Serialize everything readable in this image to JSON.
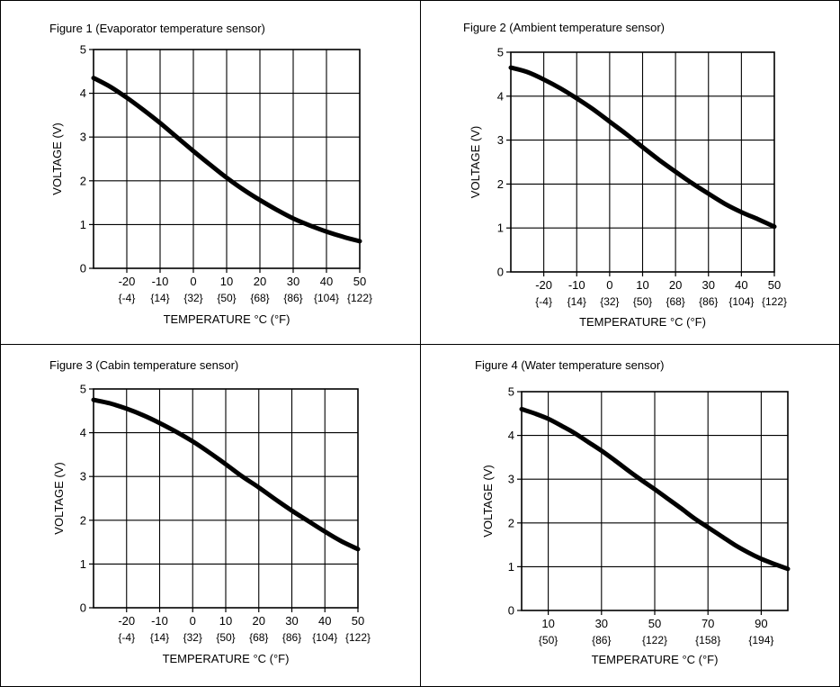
{
  "chart_data": [
    {
      "type": "line",
      "title": "Figure 1 (Evaporator temperature sensor)",
      "xlabel": "TEMPERATURE  °C (°F)",
      "ylabel": "VOLTAGE (V)",
      "xlim": [
        -30,
        50
      ],
      "ylim": [
        0,
        5
      ],
      "x_ticks": [
        "-20",
        "-10",
        "0",
        "10",
        "20",
        "30",
        "40",
        "50"
      ],
      "x_ticks_f": [
        "{-4}",
        "{14}",
        "{32}",
        "{50}",
        "{68}",
        "{86}",
        "{104}",
        "{122}"
      ],
      "y_ticks": [
        "0",
        "1",
        "2",
        "3",
        "4",
        "5"
      ],
      "grid": true,
      "series": [
        {
          "x": [
            -30,
            -25,
            -20,
            -15,
            -10,
            -5,
            0,
            5,
            10,
            15,
            20,
            25,
            30,
            35,
            40,
            45,
            50
          ],
          "y": [
            4.35,
            4.15,
            3.9,
            3.62,
            3.32,
            3.0,
            2.68,
            2.37,
            2.07,
            1.8,
            1.56,
            1.34,
            1.14,
            0.98,
            0.84,
            0.72,
            0.62
          ]
        }
      ]
    },
    {
      "type": "line",
      "title": "Figure 2 (Ambient temperature sensor)",
      "xlabel": "TEMPERATURE  °C (°F)",
      "ylabel": "VOLTAGE (V)",
      "xlim": [
        -30,
        50
      ],
      "ylim": [
        0,
        5
      ],
      "x_ticks": [
        "-20",
        "-10",
        "0",
        "10",
        "20",
        "30",
        "40",
        "50"
      ],
      "x_ticks_f": [
        "{-4}",
        "{14}",
        "{32}",
        "{50}",
        "{68}",
        "{86}",
        "{104}",
        "{122}"
      ],
      "y_ticks": [
        "0",
        "1",
        "2",
        "3",
        "4",
        "5"
      ],
      "grid": true,
      "series": [
        {
          "x": [
            -30,
            -25,
            -20,
            -15,
            -10,
            -5,
            0,
            5,
            10,
            15,
            20,
            25,
            30,
            35,
            40,
            45,
            50
          ],
          "y": [
            4.65,
            4.55,
            4.38,
            4.18,
            3.95,
            3.7,
            3.42,
            3.14,
            2.84,
            2.55,
            2.28,
            2.02,
            1.78,
            1.55,
            1.36,
            1.2,
            1.03
          ]
        }
      ]
    },
    {
      "type": "line",
      "title": "Figure 3 (Cabin temperature sensor)",
      "xlabel": "TEMPERATURE  °C (°F)",
      "ylabel": "VOLTAGE (V)",
      "xlim": [
        -30,
        50
      ],
      "ylim": [
        0,
        5
      ],
      "x_ticks": [
        "-20",
        "-10",
        "0",
        "10",
        "20",
        "30",
        "40",
        "50"
      ],
      "x_ticks_f": [
        "{-4}",
        "{14}",
        "{32}",
        "{50}",
        "{68}",
        "{86}",
        "{104}",
        "{122}"
      ],
      "y_ticks": [
        "0",
        "1",
        "2",
        "3",
        "4",
        "5"
      ],
      "grid": true,
      "series": [
        {
          "x": [
            -30,
            -25,
            -20,
            -15,
            -10,
            -5,
            0,
            5,
            10,
            15,
            20,
            25,
            30,
            35,
            40,
            45,
            50
          ],
          "y": [
            4.75,
            4.67,
            4.55,
            4.4,
            4.22,
            4.02,
            3.8,
            3.55,
            3.28,
            3.0,
            2.75,
            2.48,
            2.22,
            1.98,
            1.74,
            1.52,
            1.34
          ]
        }
      ]
    },
    {
      "type": "line",
      "title": "Figure 4 (Water temperature sensor)",
      "xlabel": "TEMPERATURE  °C (°F)",
      "ylabel": "VOLTAGE (V)",
      "xlim": [
        0,
        100
      ],
      "ylim": [
        0,
        5
      ],
      "x_ticks": [
        "10",
        "30",
        "50",
        "70",
        "90"
      ],
      "x_ticks_f": [
        "{50}",
        "{86}",
        "{122}",
        "{158}",
        "{194}"
      ],
      "y_ticks": [
        "0",
        "1",
        "2",
        "3",
        "4",
        "5"
      ],
      "grid": true,
      "series": [
        {
          "x": [
            0,
            5,
            10,
            15,
            20,
            25,
            30,
            35,
            40,
            45,
            50,
            55,
            60,
            65,
            70,
            75,
            80,
            85,
            90,
            95,
            100
          ],
          "y": [
            4.6,
            4.5,
            4.38,
            4.22,
            4.05,
            3.85,
            3.65,
            3.43,
            3.2,
            2.98,
            2.77,
            2.55,
            2.33,
            2.1,
            1.9,
            1.7,
            1.5,
            1.33,
            1.18,
            1.06,
            0.95
          ]
        }
      ]
    }
  ]
}
